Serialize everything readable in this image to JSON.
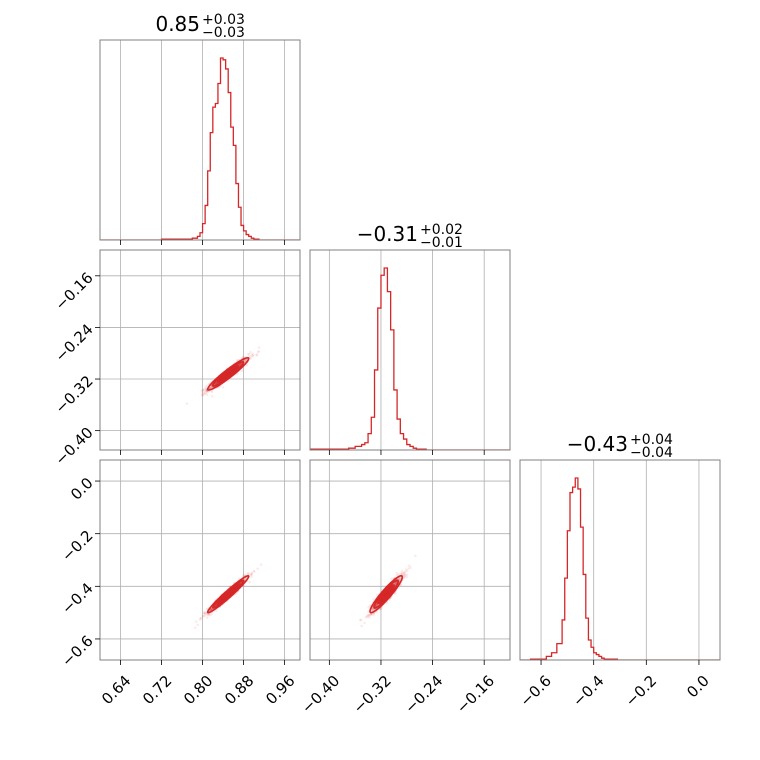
{
  "chart_data": {
    "type": "corner",
    "color": "#d62728",
    "parameters": [
      {
        "index": 0,
        "title": {
          "median": "0.85",
          "plus": "+0.03",
          "minus": "−0.03"
        },
        "range": [
          0.6,
          0.99
        ],
        "ticks": [
          0.64,
          0.72,
          0.8,
          0.88,
          0.96
        ],
        "tick_labels": [
          "0.64",
          "0.72",
          "0.80",
          "0.88",
          "0.96"
        ]
      },
      {
        "index": 1,
        "title": {
          "median": "−0.31",
          "plus": "+0.02",
          "minus": "−0.01"
        },
        "range": [
          -0.43,
          -0.12
        ],
        "ticks": [
          -0.4,
          -0.32,
          -0.24,
          -0.16
        ],
        "tick_labels": [
          "−0.40",
          "−0.32",
          "−0.24",
          "−0.16"
        ]
      },
      {
        "index": 2,
        "title": {
          "median": "−0.43",
          "plus": "+0.04",
          "minus": "−0.04"
        },
        "range": [
          -0.68,
          0.08
        ],
        "ticks": [
          -0.6,
          -0.4,
          -0.2,
          0.0
        ],
        "tick_labels": [
          "−0.6",
          "−0.4",
          "−0.2",
          "0.0"
        ]
      }
    ],
    "histograms": [
      {
        "param": 0,
        "bin_edges": [
          0.6,
          0.61,
          0.62,
          0.63,
          0.64,
          0.65,
          0.66,
          0.67,
          0.68,
          0.69,
          0.7,
          0.71,
          0.72,
          0.73,
          0.74,
          0.75,
          0.76,
          0.77,
          0.78,
          0.79,
          0.795,
          0.8,
          0.805,
          0.81,
          0.815,
          0.82,
          0.825,
          0.83,
          0.835,
          0.84,
          0.845,
          0.85,
          0.855,
          0.86,
          0.865,
          0.87,
          0.875,
          0.88,
          0.885,
          0.89,
          0.895,
          0.9,
          0.905,
          0.91,
          0.915,
          0.92,
          0.93,
          0.94,
          0.95,
          0.96,
          0.99
        ],
        "counts": [
          0,
          0,
          0,
          0,
          0,
          0,
          0,
          0,
          0,
          0,
          0,
          0,
          0.005,
          0.005,
          0.005,
          0.005,
          0.005,
          0.005,
          0.01,
          0.02,
          0.04,
          0.09,
          0.19,
          0.38,
          0.59,
          0.73,
          0.75,
          0.86,
          1.0,
          0.99,
          0.94,
          0.81,
          0.62,
          0.52,
          0.31,
          0.18,
          0.08,
          0.05,
          0.03,
          0.02,
          0.01,
          0.005,
          0.005,
          0,
          0,
          0,
          0,
          0,
          0,
          0
        ]
      },
      {
        "param": 1,
        "bin_edges": [
          -0.43,
          -0.42,
          -0.41,
          -0.4,
          -0.39,
          -0.38,
          -0.37,
          -0.36,
          -0.35,
          -0.345,
          -0.34,
          -0.335,
          -0.33,
          -0.325,
          -0.32,
          -0.315,
          -0.31,
          -0.305,
          -0.3,
          -0.295,
          -0.29,
          -0.285,
          -0.28,
          -0.275,
          -0.27,
          -0.265,
          -0.26,
          -0.25,
          -0.24,
          -0.23,
          -0.22,
          -0.21,
          -0.2,
          -0.19,
          -0.18,
          -0.17,
          -0.16,
          -0.15,
          -0.14,
          -0.13,
          -0.12
        ],
        "counts": [
          0.005,
          0.005,
          0.005,
          0.005,
          0.005,
          0.005,
          0.01,
          0.02,
          0.03,
          0.04,
          0.09,
          0.18,
          0.44,
          0.78,
          0.96,
          1.0,
          0.87,
          0.66,
          0.33,
          0.17,
          0.09,
          0.06,
          0.03,
          0.02,
          0.01,
          0.005,
          0.005,
          0,
          0,
          0,
          0,
          0,
          0,
          0,
          0,
          0,
          0,
          0,
          0,
          0
        ]
      },
      {
        "param": 2,
        "bin_edges": [
          -0.68,
          -0.66,
          -0.64,
          -0.62,
          -0.6,
          -0.58,
          -0.56,
          -0.54,
          -0.52,
          -0.51,
          -0.5,
          -0.49,
          -0.48,
          -0.47,
          -0.46,
          -0.45,
          -0.44,
          -0.43,
          -0.42,
          -0.41,
          -0.4,
          -0.39,
          -0.38,
          -0.37,
          -0.36,
          -0.35,
          -0.34,
          -0.33,
          -0.32,
          -0.31,
          -0.3,
          -0.28,
          -0.26,
          -0.24,
          -0.22,
          -0.2,
          -0.16,
          -0.12,
          -0.08,
          -0.04,
          0.0,
          0.08
        ],
        "counts": [
          0,
          0,
          0.005,
          0.005,
          0.005,
          0.02,
          0.04,
          0.09,
          0.22,
          0.45,
          0.71,
          0.92,
          0.95,
          1.0,
          0.94,
          0.73,
          0.47,
          0.23,
          0.11,
          0.07,
          0.04,
          0.03,
          0.02,
          0.01,
          0.005,
          0.005,
          0.005,
          0.005,
          0.005,
          0,
          0,
          0,
          0,
          0,
          0,
          0,
          0,
          0,
          0,
          0,
          0
        ]
      }
    ],
    "joint": [
      {
        "x_param": 0,
        "y_param": 1,
        "center": [
          0.85,
          -0.312
        ],
        "sd": [
          0.02,
          0.0125
        ],
        "corr": 0.95
      },
      {
        "x_param": 0,
        "y_param": 2,
        "center": [
          0.85,
          -0.43
        ],
        "sd": [
          0.02,
          0.035
        ],
        "corr": 0.97
      },
      {
        "x_param": 1,
        "y_param": 2,
        "center": [
          -0.312,
          -0.43
        ],
        "sd": [
          0.0125,
          0.035
        ],
        "corr": 0.93
      }
    ],
    "contour_sigmas": [
      0.5,
      1.0,
      1.5,
      2.0
    ]
  }
}
